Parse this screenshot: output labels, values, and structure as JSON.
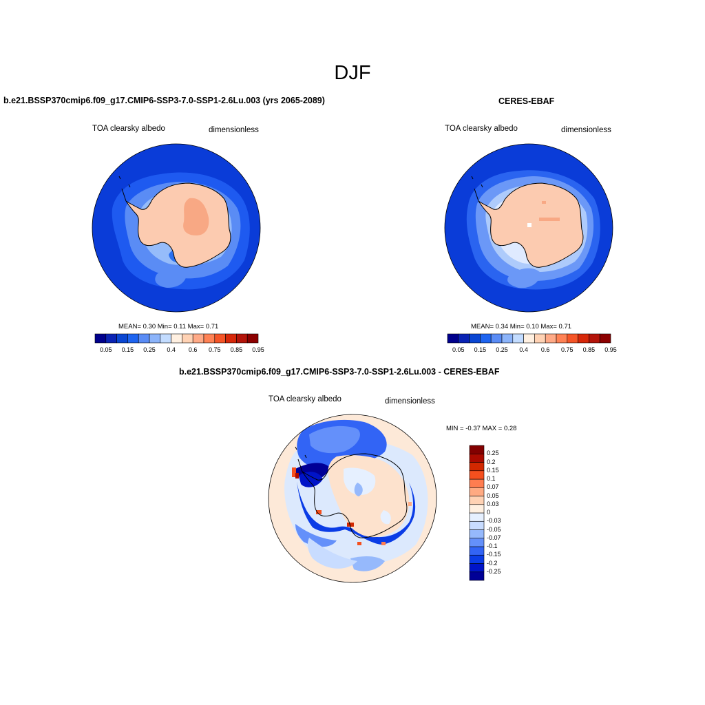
{
  "season": "DJF",
  "panels": [
    {
      "title": "b.e21.BSSP370cmip6.f09_g17.CMIP6-SSP3-7.0-SSP1-2.6Lu.003 (yrs 2065-2089)",
      "variable": "TOA clearsky albedo",
      "units": "dimensionless",
      "stats": "MEAN=   0.30  Min=   0.11  Max=   0.71"
    },
    {
      "title": "CERES-EBAF",
      "variable": "TOA clearsky albedo",
      "units": "dimensionless",
      "stats": "MEAN=   0.34  Min=   0.10  Max=   0.71"
    },
    {
      "title": "b.e21.BSSP370cmip6.f09_g17.CMIP6-SSP3-7.0-SSP1-2.6Lu.003 - CERES-EBAF",
      "variable": "TOA clearsky albedo",
      "units": "dimensionless",
      "stats": "MIN =  -0.37 MAX =   0.28"
    }
  ],
  "colorbar_main": {
    "colors": [
      "#00008c",
      "#0a23b4",
      "#0a46d2",
      "#1e64f0",
      "#5a8cf5",
      "#8cb4fa",
      "#c3dcff",
      "#fff0e1",
      "#ffd2b4",
      "#ffaa87",
      "#ff8255",
      "#f55528",
      "#d7280a",
      "#b4140a",
      "#8c0000"
    ],
    "tick_labels": [
      "0.05",
      "0.15",
      "0.25",
      "0.4",
      "0.6",
      "0.75",
      "0.85",
      "0.95"
    ]
  },
  "colorbar_diff": {
    "colors": [
      "#000096",
      "#0014c8",
      "#0a3ce6",
      "#3264f5",
      "#6490fa",
      "#96b9fc",
      "#c8dcff",
      "#e6f0ff",
      "#fff0e1",
      "#ffd2b4",
      "#ffaa82",
      "#ff7d50",
      "#f5501e",
      "#d22800",
      "#aa0a00",
      "#820000"
    ],
    "tick_labels": [
      "0.25",
      "0.2",
      "0.15",
      "0.1",
      "0.07",
      "0.05",
      "0.03",
      "0",
      "-0.03",
      "-0.05",
      "-0.07",
      "-0.1",
      "-0.15",
      "-0.2",
      "-0.25"
    ]
  }
}
